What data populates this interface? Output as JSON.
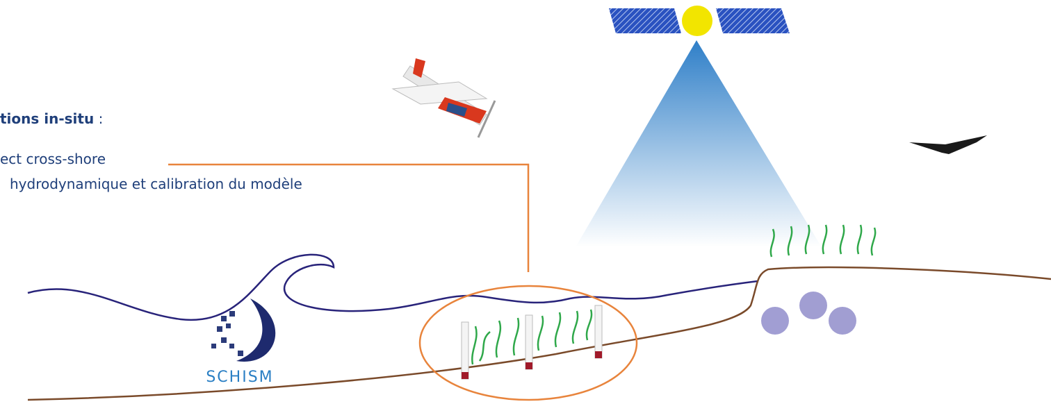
{
  "header": {
    "title": "tions in-situ",
    "title_suffix": " :"
  },
  "items": [
    "ect cross-shore",
    "hydrodynamique et calibration du modèle"
  ],
  "logo": {
    "label": "SCHISM"
  }
}
